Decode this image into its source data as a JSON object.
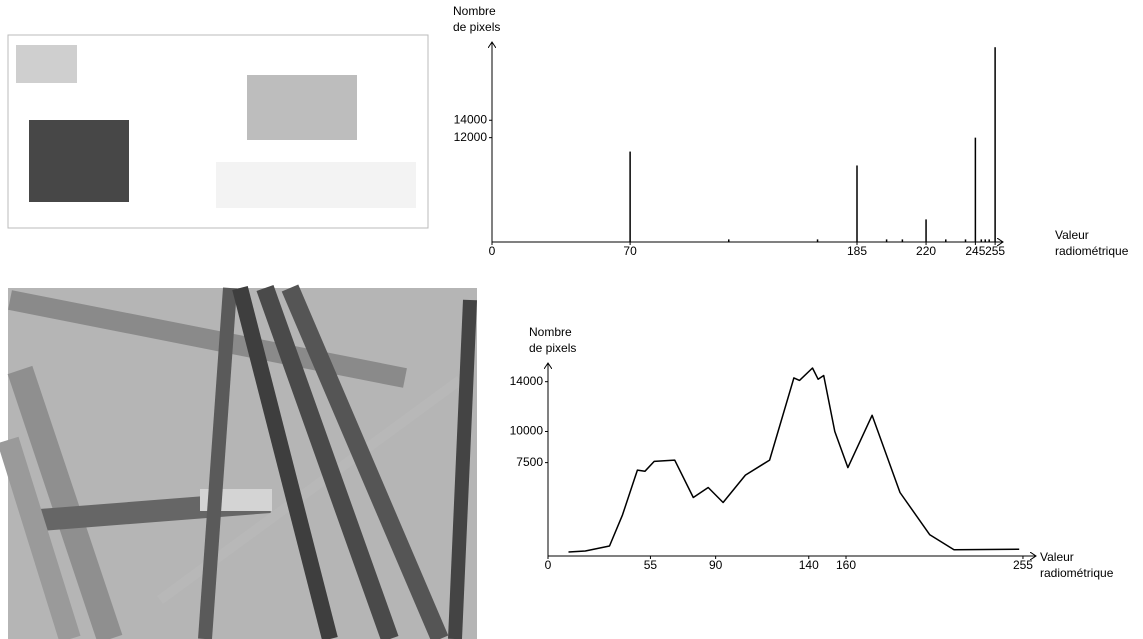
{
  "chart_data": [
    {
      "type": "bar",
      "y_label": [
        "Nombre",
        "de pixels"
      ],
      "x_label": [
        "Valeur",
        "radiométrique"
      ],
      "x": [
        70,
        120,
        165,
        185,
        200,
        208,
        220,
        230,
        240,
        245,
        248,
        250,
        252,
        255
      ],
      "values": [
        10400,
        300,
        300,
        8800,
        300,
        300,
        2600,
        300,
        300,
        12000,
        300,
        300,
        300,
        22400
      ],
      "color": "#000000",
      "xlim": [
        0,
        259
      ],
      "xticks": [
        0,
        70,
        185,
        220,
        245,
        255
      ],
      "ylim": [
        0,
        23000
      ],
      "yticks": [
        12000,
        14000
      ]
    },
    {
      "type": "line",
      "y_label": [
        "Nombre",
        "de pixels"
      ],
      "x_label": [
        "Valeur",
        "radiométrique"
      ],
      "x": [
        11,
        20,
        33,
        40,
        48,
        52,
        57,
        68,
        78,
        86,
        94,
        106,
        119,
        132,
        135,
        142,
        145,
        148,
        154,
        161,
        174,
        189,
        205,
        218,
        253
      ],
      "values": [
        320,
        400,
        800,
        3300,
        6900,
        6800,
        7600,
        7700,
        4700,
        5500,
        4300,
        6500,
        7700,
        14300,
        14100,
        15100,
        14200,
        14500,
        10000,
        7100,
        11300,
        5100,
        1700,
        500,
        550
      ],
      "color": "#000000",
      "xlim": [
        0,
        262
      ],
      "xticks": [
        0,
        55,
        90,
        140,
        160,
        255
      ],
      "ylim": [
        0,
        15500
      ],
      "yticks": [
        7500,
        10000,
        14000
      ]
    }
  ]
}
